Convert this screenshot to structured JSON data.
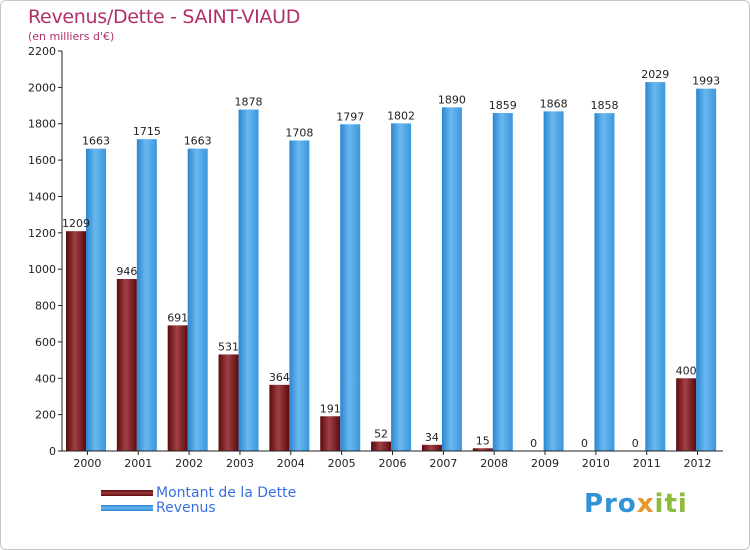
{
  "title": "Revenus/Dette - SAINT-VIAUD",
  "subtitle": "(en milliers d'€)",
  "legend": {
    "position": "bottom-left",
    "items": [
      "Montant de la Dette",
      "Revenus"
    ]
  },
  "logo": {
    "part1": "Pro",
    "part2": "x",
    "part3": "iti"
  },
  "colors": {
    "dette": "#6b0f12",
    "revenus": "#4aa3e6",
    "title": "#b0306a",
    "legend_text": "#3a6fe0"
  },
  "chart_data": {
    "type": "bar",
    "categories": [
      "2000",
      "2001",
      "2002",
      "2003",
      "2004",
      "2005",
      "2006",
      "2007",
      "2008",
      "2009",
      "2010",
      "2011",
      "2012"
    ],
    "series": [
      {
        "name": "Montant de la Dette",
        "values": [
          1209,
          946,
          691,
          531,
          364,
          191,
          52,
          34,
          15,
          0,
          0,
          0,
          400
        ]
      },
      {
        "name": "Revenus",
        "values": [
          1663,
          1715,
          1663,
          1878,
          1708,
          1797,
          1802,
          1890,
          1859,
          1868,
          1858,
          2029,
          1993
        ]
      }
    ],
    "ylim": [
      0,
      2200
    ],
    "yticks": [
      0,
      200,
      400,
      600,
      800,
      1000,
      1200,
      1400,
      1600,
      1800,
      2000,
      2200
    ],
    "grid": false
  }
}
